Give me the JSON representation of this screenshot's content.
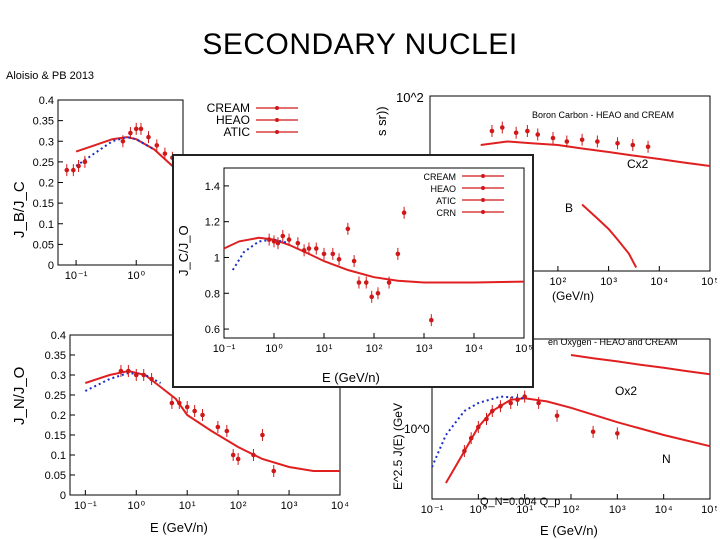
{
  "slide": {
    "title": "SECONDARY NUCLEI",
    "attribution": "Aloisio & PB 2013"
  },
  "colors": {
    "model": "#e02020",
    "alt_model": "#1a2fc8",
    "data": "#d01818",
    "axis": "#000000"
  },
  "chart_data": [
    {
      "id": "bc",
      "type": "line",
      "xscale": "log",
      "xlim": [
        0.05,
        6
      ],
      "ylim": [
        0,
        0.4
      ],
      "ylabel": "J_B/J_C",
      "yticks": [
        "0",
        "0.05",
        "0.1",
        "0.15",
        "0.2",
        "0.25",
        "0.3",
        "0.35",
        "0.4"
      ],
      "xticks": [
        "10^-1",
        "10^0"
      ],
      "legend": [
        "CREAM",
        "HEAO",
        "ATIC"
      ],
      "series": [
        {
          "kind": "model",
          "x": [
            0.1,
            0.2,
            0.4,
            0.7,
            1.0,
            2.0,
            4.0,
            6.0
          ],
          "y": [
            0.275,
            0.29,
            0.305,
            0.31,
            0.305,
            0.28,
            0.24,
            0.22
          ]
        },
        {
          "kind": "alt_model",
          "x": [
            0.1,
            0.2,
            0.4,
            0.7,
            1.0,
            2.0
          ],
          "y": [
            0.24,
            0.27,
            0.3,
            0.31,
            0.305,
            0.28
          ]
        },
        {
          "kind": "data",
          "x": [
            0.07,
            0.09,
            0.11,
            0.14,
            0.6,
            0.8,
            1.0,
            1.2,
            1.6,
            2.2,
            3.0,
            4.0
          ],
          "y": [
            0.23,
            0.23,
            0.24,
            0.25,
            0.3,
            0.32,
            0.33,
            0.33,
            0.31,
            0.29,
            0.27,
            0.26
          ]
        }
      ]
    },
    {
      "id": "bcarbon",
      "type": "line",
      "xscale": "log",
      "xlim": [
        0.3,
        100000
      ],
      "ylim": [
        0,
        1
      ],
      "ylabel_fragment": "s sr))",
      "ytick_label": "10^2",
      "xticks": [
        "10^2",
        "10^3",
        "10^4",
        "10^5"
      ],
      "xlabel_fragment": "(GeV/n)",
      "caption": "Boron Carbon - HEAO and CREAM",
      "annotations": [
        "Cx2",
        "B"
      ],
      "series": [
        {
          "kind": "model",
          "name": "Cx2",
          "x": [
            3,
            10,
            30,
            100,
            300,
            1000,
            3000,
            10000,
            30000,
            100000
          ],
          "y": [
            0.72,
            0.74,
            0.73,
            0.72,
            0.7,
            0.68,
            0.66,
            0.64,
            0.62,
            0.6
          ]
        },
        {
          "kind": "model",
          "name": "B",
          "x": [
            300,
            600,
            1000,
            1500,
            2500,
            3500
          ],
          "y": [
            0.38,
            0.3,
            0.24,
            0.18,
            0.1,
            0.02
          ]
        },
        {
          "kind": "data",
          "x": [
            5,
            8,
            15,
            25,
            40,
            80,
            150,
            300,
            600,
            1500,
            3000,
            6000
          ],
          "y": [
            0.8,
            0.82,
            0.79,
            0.8,
            0.78,
            0.76,
            0.74,
            0.75,
            0.74,
            0.73,
            0.72,
            0.71
          ]
        }
      ]
    },
    {
      "id": "co",
      "type": "line",
      "xscale": "log",
      "xlim": [
        0.1,
        100000
      ],
      "ylim": [
        0.55,
        1.5
      ],
      "ylabel": "J_C/J_O",
      "xlabel": "E (GeV/n)",
      "yticks": [
        "0.6",
        "0.8",
        "1",
        "1.2",
        "1.4"
      ],
      "xticks": [
        "10^-1",
        "10^0",
        "10^1",
        "10^2",
        "10^3",
        "10^4",
        "10^5"
      ],
      "legend": [
        "CREAM",
        "HEAO",
        "ATIC",
        "CRN"
      ],
      "series": [
        {
          "kind": "model",
          "x": [
            0.1,
            0.2,
            0.5,
            1,
            2,
            5,
            10,
            30,
            100,
            300,
            1000,
            10000,
            100000
          ],
          "y": [
            1.05,
            1.09,
            1.11,
            1.1,
            1.07,
            1.02,
            0.98,
            0.93,
            0.89,
            0.87,
            0.86,
            0.86,
            0.865
          ]
        },
        {
          "kind": "alt_model",
          "x": [
            0.15,
            0.25,
            0.5,
            1,
            2
          ],
          "y": [
            0.93,
            1.03,
            1.09,
            1.1,
            1.08
          ]
        },
        {
          "kind": "data",
          "x": [
            0.8,
            1.0,
            1.2,
            1.5,
            2.0,
            3.0,
            4.0,
            5.0,
            7.0,
            10.0,
            15.0,
            20.0,
            30.0,
            40.0,
            50.0,
            70.0,
            90.0,
            120.0,
            200.0,
            300.0,
            400.0,
            1400.0
          ],
          "y": [
            1.1,
            1.09,
            1.08,
            1.12,
            1.1,
            1.08,
            1.04,
            1.05,
            1.05,
            1.02,
            1.02,
            0.99,
            1.16,
            0.98,
            0.86,
            0.86,
            0.78,
            0.8,
            0.86,
            1.02,
            1.25,
            0.65
          ]
        }
      ]
    },
    {
      "id": "no",
      "type": "line",
      "xscale": "log",
      "xlim": [
        0.05,
        10000
      ],
      "ylim": [
        0,
        0.4
      ],
      "ylabel": "J_N/J_O",
      "xlabel_fragment": "E (GeV/n)",
      "yticks": [
        "0",
        "0.05",
        "0.1",
        "0.15",
        "0.2",
        "0.25",
        "0.3",
        "0.35",
        "0.4"
      ],
      "xticks": [
        "10^-1",
        "10^0",
        "10^1",
        "10^2",
        "10^3",
        "10^4"
      ],
      "series": [
        {
          "kind": "model",
          "x": [
            0.1,
            0.3,
            0.7,
            1.5,
            3,
            6,
            10,
            30,
            100,
            300,
            1000,
            3000,
            10000
          ],
          "y": [
            0.28,
            0.3,
            0.31,
            0.3,
            0.27,
            0.24,
            0.2,
            0.16,
            0.12,
            0.09,
            0.07,
            0.06,
            0.06
          ]
        },
        {
          "kind": "alt_model",
          "x": [
            0.1,
            0.3,
            0.7,
            1.5,
            3
          ],
          "y": [
            0.26,
            0.29,
            0.305,
            0.3,
            0.28
          ]
        },
        {
          "kind": "data",
          "x": [
            0.5,
            0.7,
            1.0,
            1.4,
            2.0,
            5.0,
            7.0,
            10.0,
            14.0,
            20.0,
            40.0,
            60.0,
            80.0,
            100.0,
            200.0,
            300.0,
            500.0
          ],
          "y": [
            0.31,
            0.31,
            0.3,
            0.3,
            0.29,
            0.23,
            0.23,
            0.22,
            0.21,
            0.2,
            0.17,
            0.16,
            0.1,
            0.09,
            0.1,
            0.15,
            0.06
          ]
        }
      ]
    },
    {
      "id": "noxygen",
      "type": "line",
      "xscale": "log",
      "xlim": [
        0.1,
        100000
      ],
      "ylim": [
        0,
        1
      ],
      "ylabel": "E^2.5 J(E) (GeV",
      "ytick_label": "10^0",
      "xticks": [
        "10^-1",
        "10^0",
        "10^1",
        "10^2",
        "10^3",
        "10^4",
        "10^5"
      ],
      "xlabel": "E (GeV/n)",
      "caption": "en Oxygen - HEAO and CREAM",
      "annotations": [
        "Ox2",
        "N",
        "Q_N=0.004 Q_p"
      ],
      "series": [
        {
          "kind": "model",
          "name": "Ox2",
          "x": [
            100,
            300,
            1000,
            3000,
            10000,
            30000,
            100000
          ],
          "y": [
            0.9,
            0.88,
            0.86,
            0.84,
            0.82,
            0.8,
            0.78
          ]
        },
        {
          "kind": "model",
          "name": "N",
          "x": [
            0.2,
            0.4,
            1,
            2,
            5,
            10,
            30,
            100,
            1000,
            10000,
            100000
          ],
          "y": [
            0.1,
            0.25,
            0.45,
            0.55,
            0.62,
            0.63,
            0.61,
            0.57,
            0.48,
            0.4,
            0.33
          ]
        },
        {
          "kind": "alt_model",
          "x": [
            0.1,
            0.2,
            0.5,
            1,
            3,
            10
          ],
          "y": [
            0.2,
            0.4,
            0.55,
            0.6,
            0.64,
            0.63
          ]
        },
        {
          "kind": "data",
          "x": [
            0.5,
            0.7,
            1.0,
            1.5,
            2.0,
            3.0,
            5.0,
            7.0,
            10.0,
            20.0,
            50.0,
            300.0,
            1000.0
          ],
          "y": [
            0.3,
            0.38,
            0.45,
            0.5,
            0.55,
            0.58,
            0.6,
            0.62,
            0.64,
            0.6,
            0.52,
            0.42,
            0.41
          ]
        }
      ]
    }
  ]
}
